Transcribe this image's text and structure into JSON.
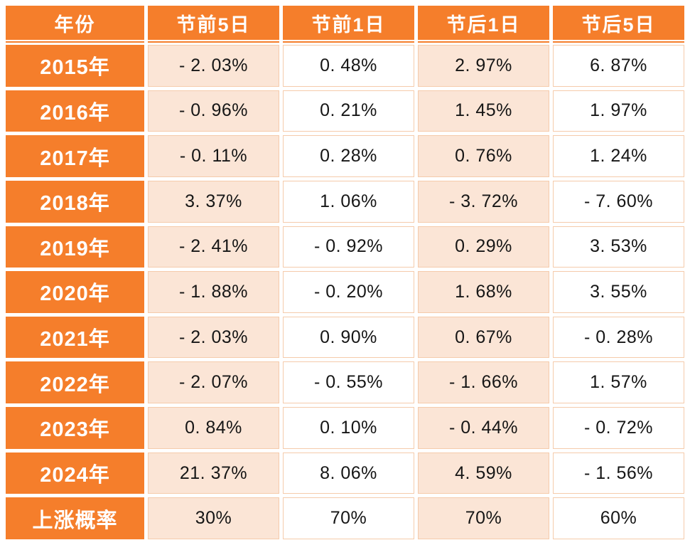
{
  "colors": {
    "header_orange": "#F57E2B",
    "band_peach": "#FBE5D6",
    "cell_border": "#F5CBAB",
    "header_text": "#FFFFFF",
    "data_text": "#161616",
    "background": "#FFFFFF"
  },
  "table": {
    "columns": [
      "年份",
      "节前5日",
      "节前1日",
      "节后1日",
      "节后5日"
    ],
    "rows": [
      {
        "label": "2015年",
        "values": [
          "- 2. 03%",
          "0. 48%",
          "2. 97%",
          "6. 87%"
        ]
      },
      {
        "label": "2016年",
        "values": [
          "- 0. 96%",
          "0. 21%",
          "1. 45%",
          "1. 97%"
        ]
      },
      {
        "label": "2017年",
        "values": [
          "- 0. 11%",
          "0. 28%",
          "0. 76%",
          "1. 24%"
        ]
      },
      {
        "label": "2018年",
        "values": [
          "3. 37%",
          "1. 06%",
          "- 3. 72%",
          "- 7. 60%"
        ]
      },
      {
        "label": "2019年",
        "values": [
          "- 2. 41%",
          "- 0. 92%",
          "0. 29%",
          "3. 53%"
        ]
      },
      {
        "label": "2020年",
        "values": [
          "- 1. 88%",
          "- 0. 20%",
          "1. 68%",
          "3. 55%"
        ]
      },
      {
        "label": "2021年",
        "values": [
          "- 2. 03%",
          "0. 90%",
          "0. 67%",
          "- 0. 28%"
        ]
      },
      {
        "label": "2022年",
        "values": [
          "- 2. 07%",
          "- 0. 55%",
          "- 1. 66%",
          "1. 57%"
        ]
      },
      {
        "label": "2023年",
        "values": [
          "0. 84%",
          "0. 10%",
          "- 0. 44%",
          "- 0. 72%"
        ]
      },
      {
        "label": "2024年",
        "values": [
          "21. 37%",
          "8. 06%",
          "4. 59%",
          "- 1. 56%"
        ]
      },
      {
        "label": "上涨概率",
        "values": [
          "30%",
          "70%",
          "70%",
          "60%"
        ]
      }
    ]
  },
  "chart_data": {
    "type": "table",
    "title": "",
    "columns": [
      "年份",
      "节前5日",
      "节前1日",
      "节后1日",
      "节后5日"
    ],
    "rows": [
      [
        "2015年",
        "-2.03%",
        "0.48%",
        "2.97%",
        "6.87%"
      ],
      [
        "2016年",
        "-0.96%",
        "0.21%",
        "1.45%",
        "1.97%"
      ],
      [
        "2017年",
        "-0.11%",
        "0.28%",
        "0.76%",
        "1.24%"
      ],
      [
        "2018年",
        "3.37%",
        "1.06%",
        "-3.72%",
        "-7.60%"
      ],
      [
        "2019年",
        "-2.41%",
        "-0.92%",
        "0.29%",
        "3.53%"
      ],
      [
        "2020年",
        "-1.88%",
        "-0.20%",
        "1.68%",
        "3.55%"
      ],
      [
        "2021年",
        "-2.03%",
        "0.90%",
        "0.67%",
        "-0.28%"
      ],
      [
        "2022年",
        "-2.07%",
        "-0.55%",
        "-1.66%",
        "1.57%"
      ],
      [
        "2023年",
        "0.84%",
        "0.10%",
        "-0.44%",
        "-0.72%"
      ],
      [
        "2024年",
        "21.37%",
        "8.06%",
        "4.59%",
        "-1.56%"
      ],
      [
        "上涨概率",
        "30%",
        "70%",
        "70%",
        "60%"
      ]
    ]
  }
}
